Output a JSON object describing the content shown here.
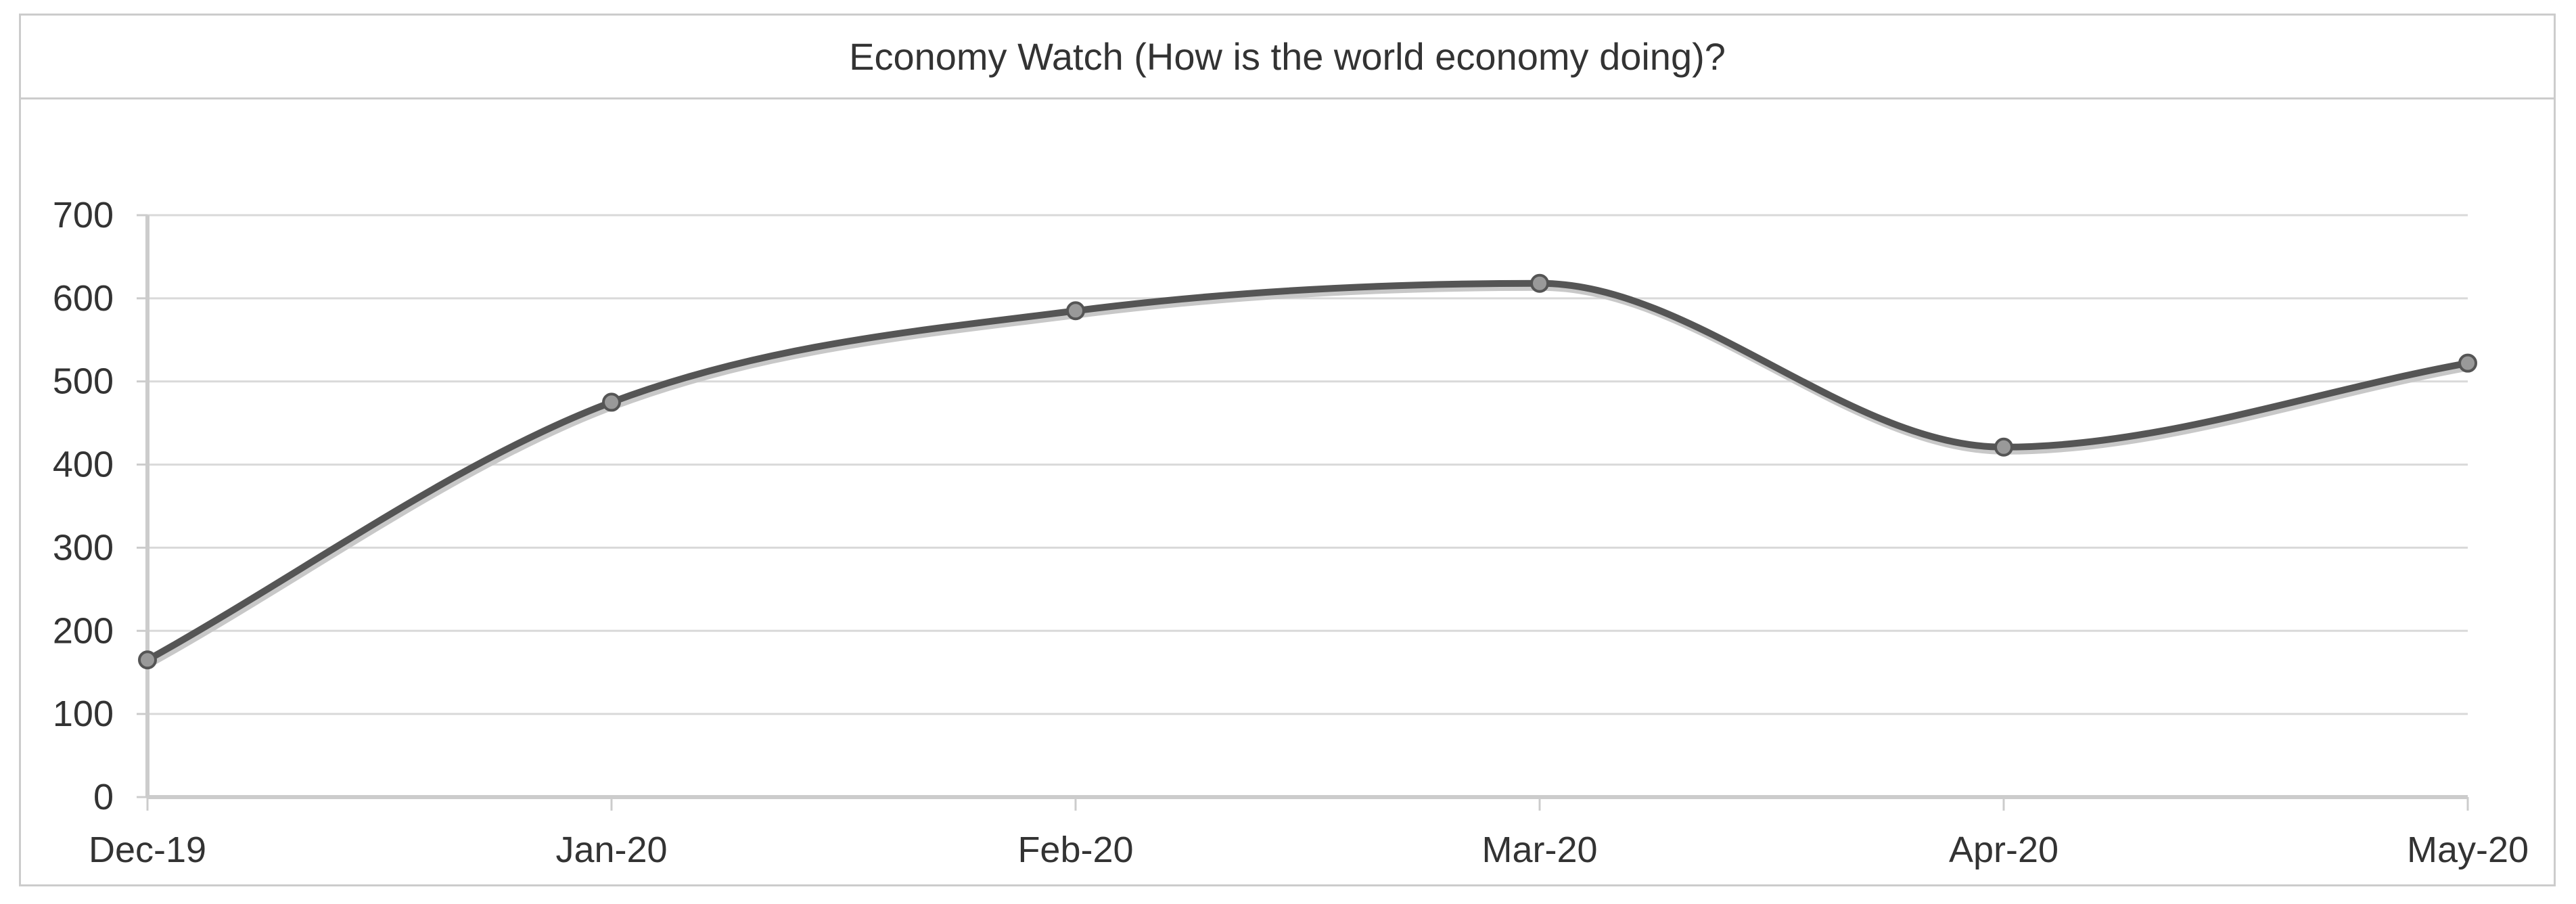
{
  "chart_data": {
    "type": "line",
    "title": "Economy Watch (How is the world economy doing)?",
    "xlabel": "",
    "ylabel": "",
    "categories": [
      "Dec-19",
      "Jan-20",
      "Feb-20",
      "Mar-20",
      "Apr-20",
      "May-20"
    ],
    "series": [
      {
        "values": [
          165,
          475,
          585,
          618,
          421,
          522
        ]
      }
    ],
    "ylim": [
      0,
      700
    ],
    "yticks": [
      "0",
      "100",
      "200",
      "300",
      "400",
      "500",
      "600",
      "700"
    ],
    "grid": true,
    "smooth": true,
    "colors": {
      "line": "#555555",
      "shadow": "#c8c8c8",
      "marker_fill": "#999999",
      "marker_stroke": "#555555",
      "grid": "#d9d9d9",
      "axis": "#cccccc",
      "text": "#333333"
    }
  }
}
